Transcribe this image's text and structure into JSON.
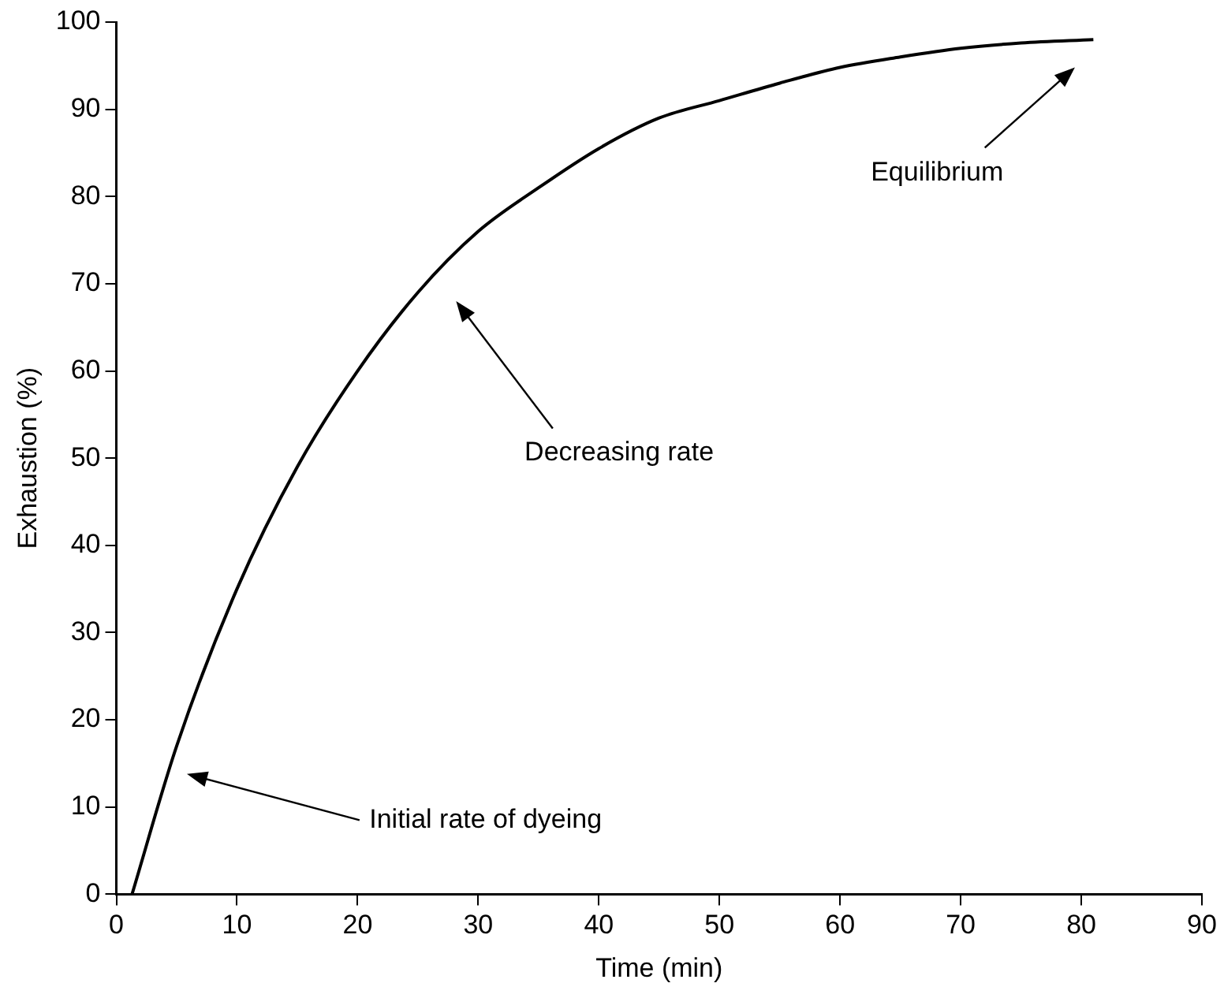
{
  "chart_data": {
    "type": "line",
    "xlabel": "Time (min)",
    "ylabel": "Exhaustion (%)",
    "x": [
      1.3,
      5,
      10,
      15,
      20,
      25,
      30,
      35,
      40,
      45,
      50,
      55,
      60,
      65,
      70,
      75,
      81
    ],
    "series": [
      {
        "color": "#000000",
        "values": [
          0,
          17,
          35,
          49,
          60,
          69,
          76,
          81,
          85.5,
          89,
          91,
          93,
          94.8,
          96,
          97,
          97.6,
          98
        ]
      }
    ],
    "xlim": [
      0,
      90
    ],
    "xticks": [
      0,
      10,
      20,
      30,
      40,
      50,
      60,
      70,
      80,
      90
    ],
    "ylim": [
      0,
      100
    ],
    "yticks": [
      0,
      10,
      20,
      30,
      40,
      50,
      60,
      70,
      80,
      90,
      100
    ],
    "grid": false,
    "legend": false,
    "marker": "none",
    "line_style": "solid",
    "annotations": [
      "Initial rate of dyeing",
      "Decreasing rate",
      "Equilibrium"
    ]
  }
}
